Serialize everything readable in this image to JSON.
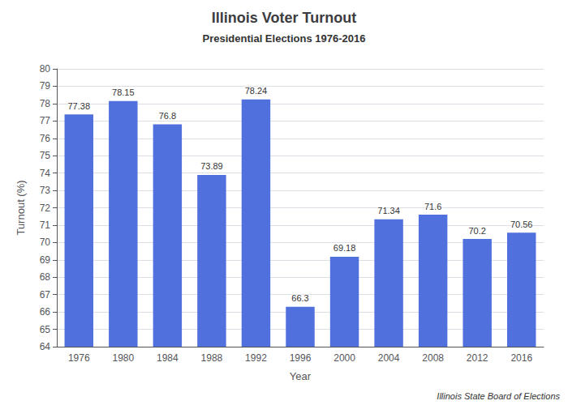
{
  "chart_data": {
    "type": "bar",
    "title": "Illinois Voter Turnout",
    "subtitle": "Presidential Elections 1976-2016",
    "xlabel": "Year",
    "ylabel": "Turnout (%)",
    "annotations": [
      "Illinois State Board of Elections"
    ],
    "categories": [
      "1976",
      "1980",
      "1984",
      "1988",
      "1992",
      "1996",
      "2000",
      "2004",
      "2008",
      "2012",
      "2016"
    ],
    "values": [
      77.38,
      78.15,
      76.8,
      73.89,
      78.24,
      66.3,
      69.18,
      71.34,
      71.6,
      70.2,
      70.56
    ],
    "ylim": [
      64,
      80
    ],
    "yticks": [
      64,
      65,
      66,
      67,
      68,
      69,
      70,
      71,
      72,
      73,
      74,
      75,
      76,
      77,
      78,
      79,
      80
    ],
    "grid": true,
    "data_labels": true
  }
}
